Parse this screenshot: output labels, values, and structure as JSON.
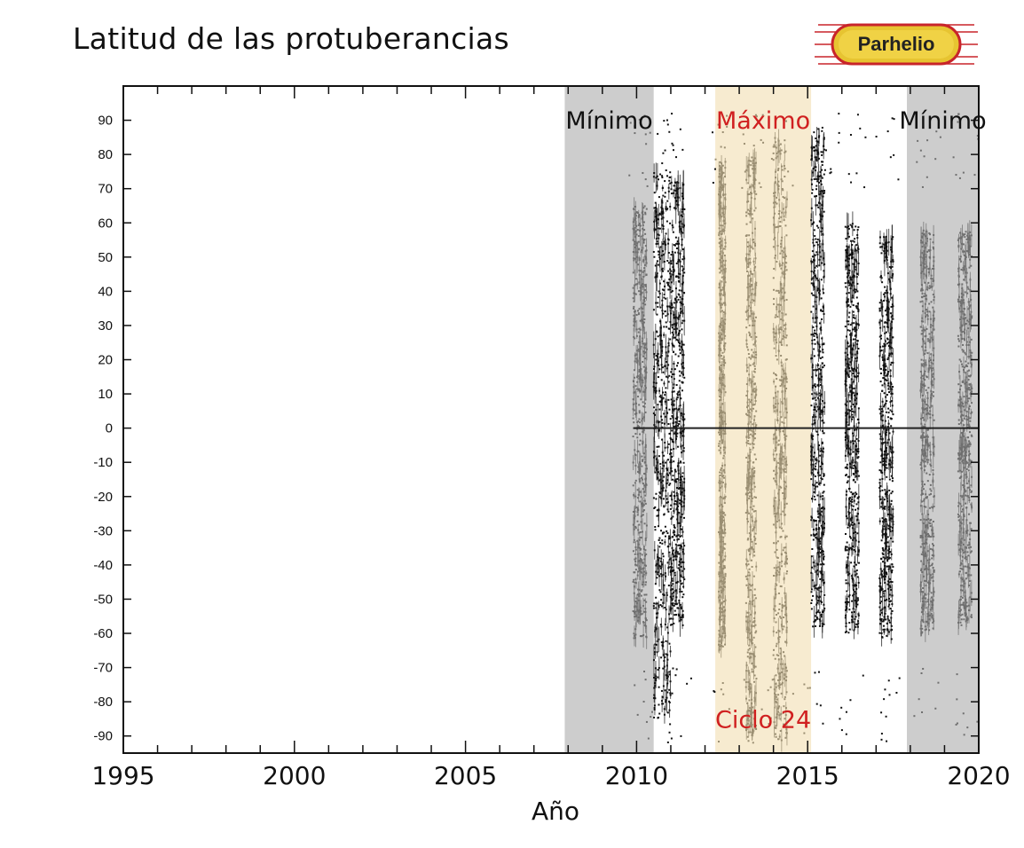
{
  "header": {
    "title": "Latitud de las protuberancias",
    "logo_text": "Parhelio"
  },
  "chart_data": {
    "type": "scatter",
    "title": "Latitud de las protuberancias",
    "xlabel": "Año",
    "ylabel": "",
    "xlim": [
      1995,
      2020
    ],
    "ylim": [
      -95,
      100
    ],
    "x_ticks": [
      1995,
      2000,
      2005,
      2010,
      2015,
      2020
    ],
    "y_ticks": [
      90,
      80,
      70,
      60,
      50,
      40,
      30,
      20,
      10,
      0,
      -10,
      -20,
      -30,
      -40,
      -50,
      -60,
      -70,
      -80,
      -90
    ],
    "grid": false,
    "legend": false,
    "reference_line_y": 0,
    "shaded_regions": [
      {
        "label": "Mínimo",
        "x_start": 2007.9,
        "x_end": 2010.5,
        "color": "#cdcdcd",
        "label_color": "#111111"
      },
      {
        "label": "Máximo",
        "x_start": 2012.3,
        "x_end": 2015.1,
        "color": "#f7ebd0",
        "label_color": "#d02020"
      },
      {
        "label": "Mínimo",
        "x_start": 2017.9,
        "x_end": 2020.0,
        "color": "#cdcdcd",
        "label_color": "#111111"
      }
    ],
    "annotations": [
      {
        "text": "Ciclo 24",
        "x": 2013.7,
        "y": -85,
        "color": "#d02020"
      }
    ],
    "observation_bands": [
      {
        "x_start": 2009.9,
        "x_end": 2010.3,
        "lat_min": -62,
        "lat_max": 65
      },
      {
        "x_start": 2010.5,
        "x_end": 2011.0,
        "lat_min": -85,
        "lat_max": 75
      },
      {
        "x_start": 2011.0,
        "x_end": 2011.4,
        "lat_min": -58,
        "lat_max": 72
      },
      {
        "x_start": 2012.4,
        "x_end": 2012.6,
        "lat_min": -65,
        "lat_max": 78
      },
      {
        "x_start": 2013.2,
        "x_end": 2013.5,
        "lat_min": -92,
        "lat_max": 80
      },
      {
        "x_start": 2014.0,
        "x_end": 2014.4,
        "lat_min": -92,
        "lat_max": 85
      },
      {
        "x_start": 2015.1,
        "x_end": 2015.5,
        "lat_min": -58,
        "lat_max": 88
      },
      {
        "x_start": 2016.1,
        "x_end": 2016.5,
        "lat_min": -60,
        "lat_max": 60
      },
      {
        "x_start": 2017.1,
        "x_end": 2017.5,
        "lat_min": -62,
        "lat_max": 56
      },
      {
        "x_start": 2018.3,
        "x_end": 2018.7,
        "lat_min": -60,
        "lat_max": 58
      },
      {
        "x_start": 2019.4,
        "x_end": 2019.8,
        "lat_min": -58,
        "lat_max": 58
      }
    ],
    "point_colors": {
      "in_minimum": "#6f6f6f",
      "in_maximum": "#9a8e72",
      "other": "#111111"
    }
  }
}
